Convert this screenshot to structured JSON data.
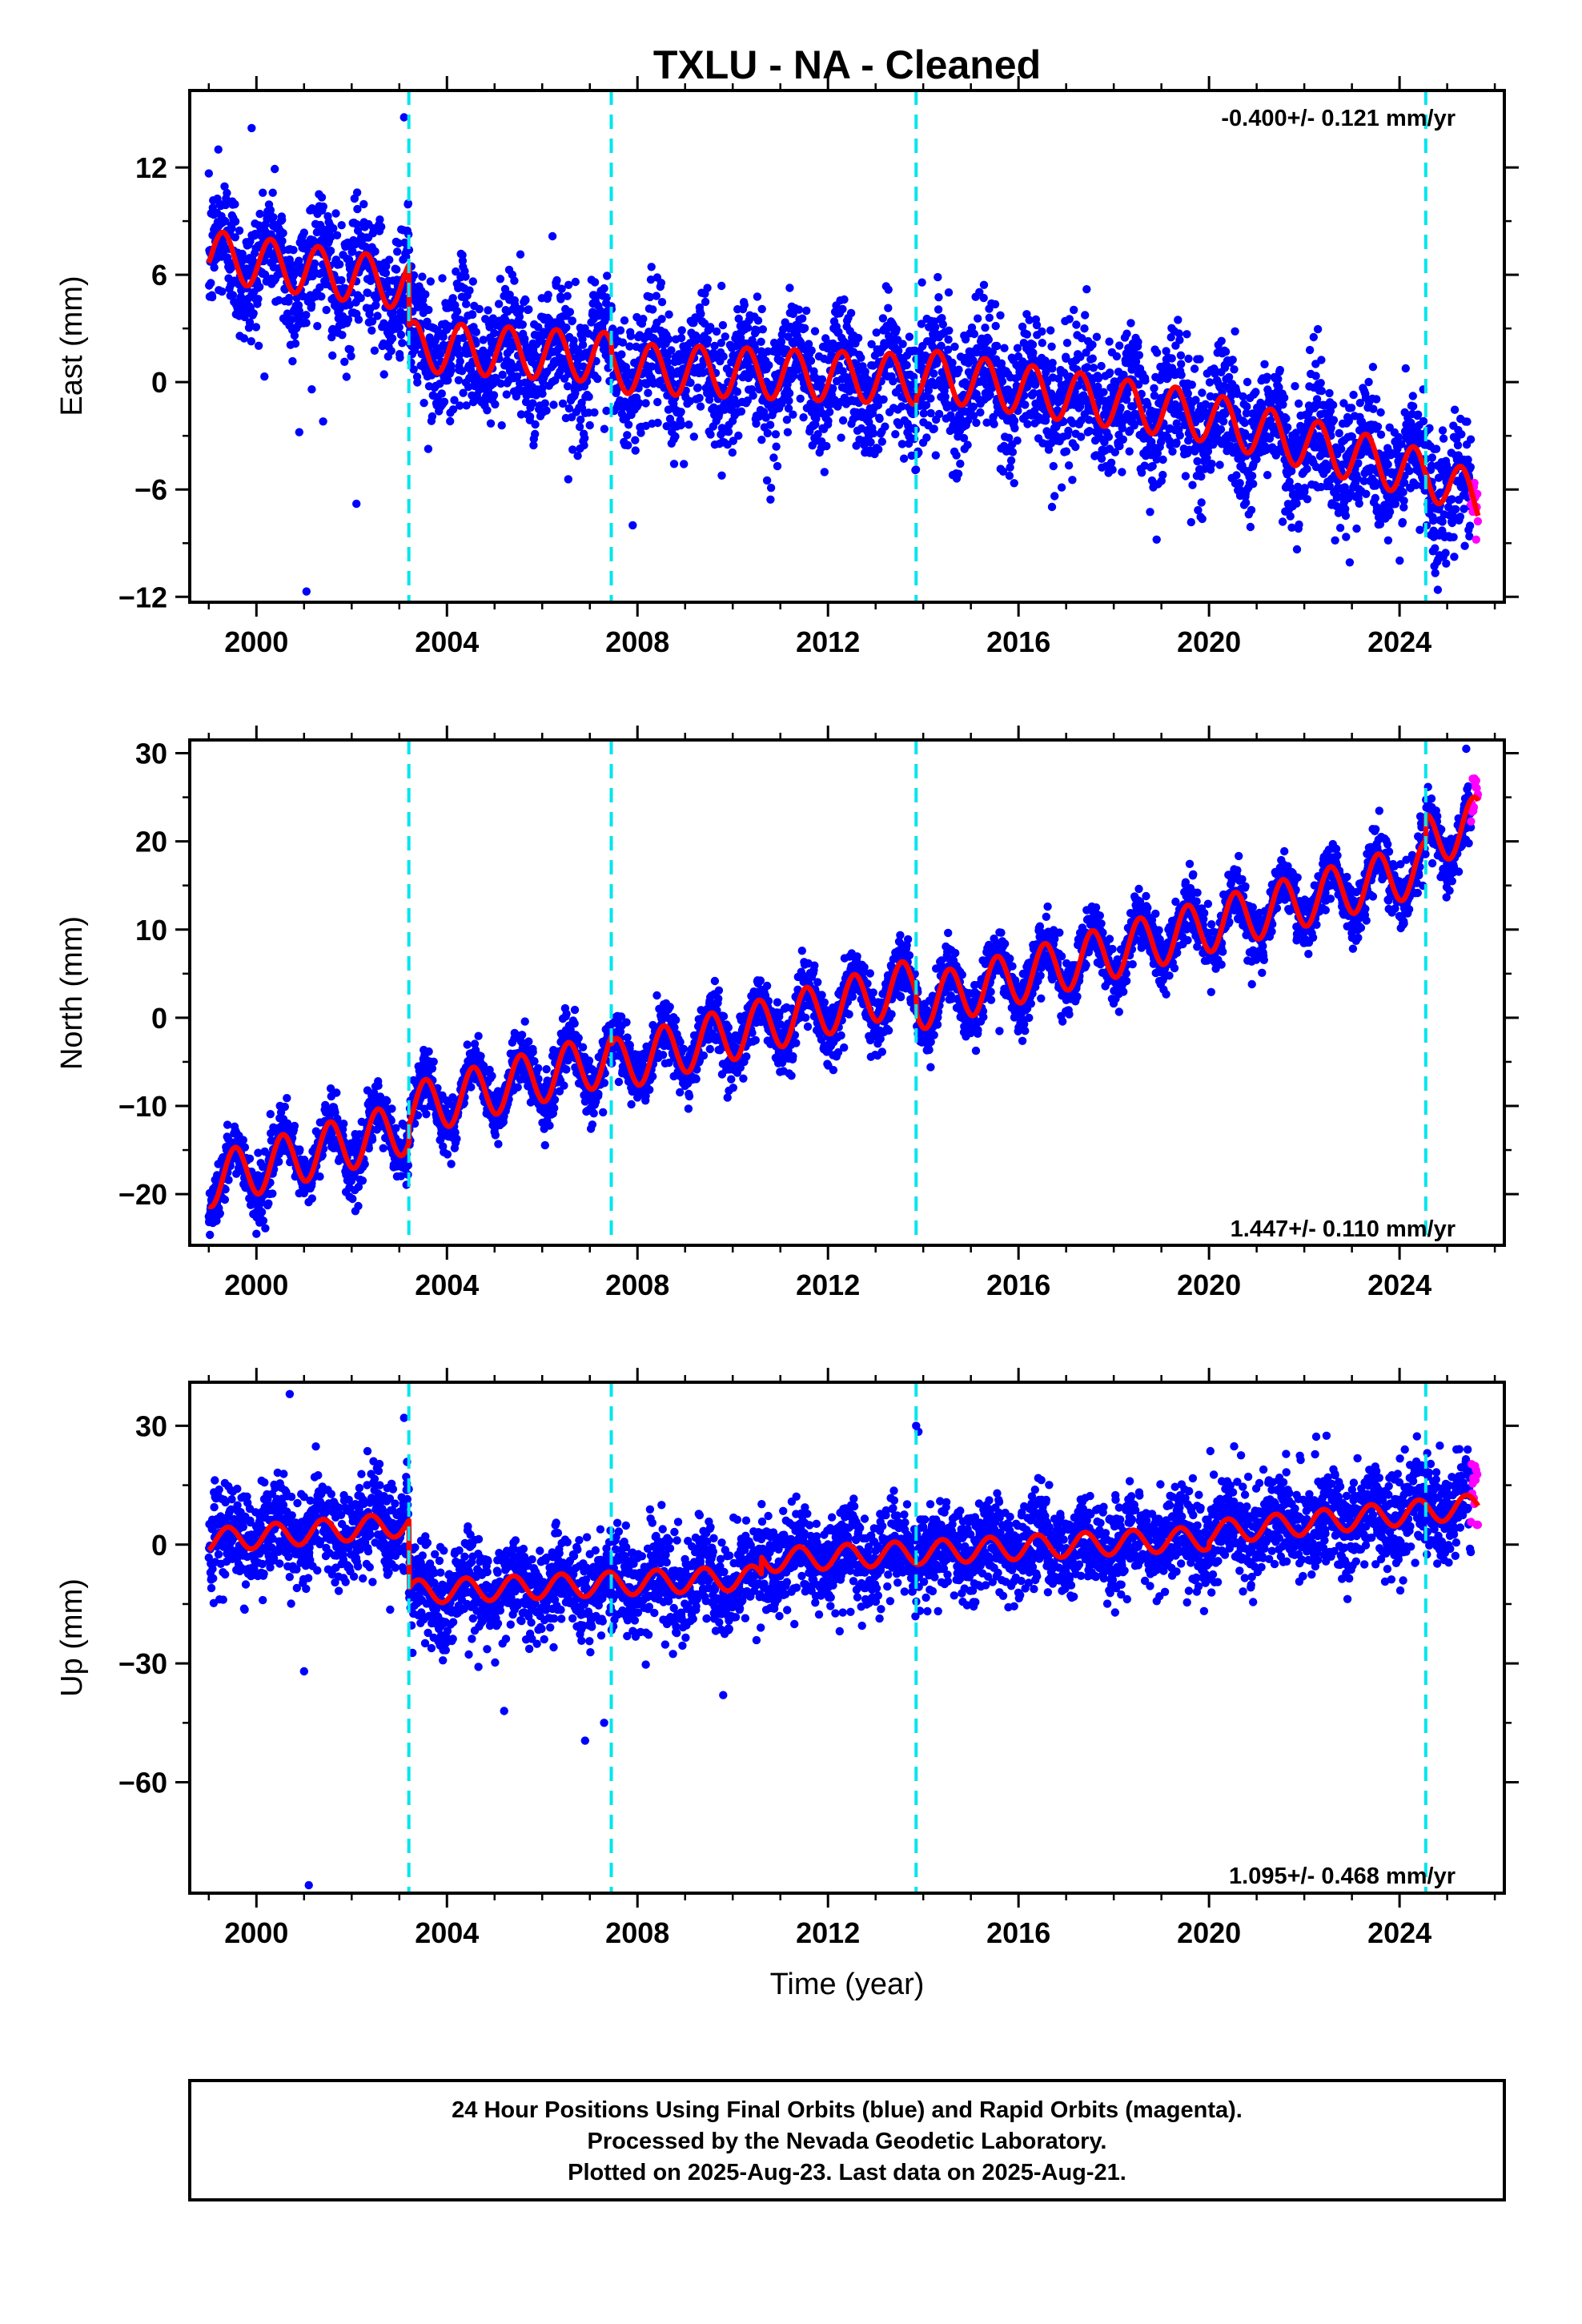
{
  "title": "TXLU  - NA - Cleaned",
  "chart_data": [
    {
      "type": "scatter",
      "ylabel": "East (mm)",
      "xlim": [
        1998.6,
        2026.2
      ],
      "ylim": [
        -12.3,
        16.3
      ],
      "x_ticks": [
        2000,
        2004,
        2008,
        2012,
        2016,
        2020,
        2024
      ],
      "x_tick_labels": [
        "2000",
        "2004",
        "2008",
        "2012",
        "2016",
        "2020",
        "2024"
      ],
      "y_ticks": [
        12,
        6,
        0,
        -6,
        -12
      ],
      "y_tick_labels": [
        "12",
        "6",
        "0",
        "−6",
        "−12"
      ],
      "rate_text": "-0.400+/- 0.121 mm/yr",
      "rate_position": "top-right",
      "equipment_changes": [
        2003.2,
        2007.45,
        2013.85,
        2024.55
      ],
      "model": {
        "segments": [
          {
            "t0": 1999.0,
            "t1": 2003.2,
            "y_start": 7.1,
            "rate": -0.4
          },
          {
            "t0": 2003.2,
            "t1": 2007.45,
            "y_start": 2.0,
            "rate": -0.15
          },
          {
            "t0": 2007.45,
            "t1": 2013.85,
            "y_start": 0.8,
            "rate": -0.1
          },
          {
            "t0": 2013.85,
            "t1": 2020.0,
            "y_start": 0.5,
            "rate": -0.4
          },
          {
            "t0": 2020.0,
            "t1": 2024.55,
            "y_start": -2.0,
            "rate": -0.7
          },
          {
            "t0": 2024.55,
            "t1": 2025.65,
            "y_start": -5.0,
            "rate": -1.5
          }
        ],
        "annual_amplitude": 1.4,
        "annual_phase_year": 0.3,
        "noise_sd": 1.8
      },
      "series": [
        {
          "name": "Final Orbits",
          "color": "#0000ff",
          "x_range": [
            1999.0,
            2025.5
          ]
        },
        {
          "name": "Rapid Orbits",
          "color": "#ff00ff",
          "x_range": [
            2025.5,
            2025.65
          ]
        },
        {
          "name": "",
          "color": "#ff0000",
          "type": "line"
        }
      ],
      "outliers": [
        [
          1999.85,
          16.8
        ],
        [
          2001.05,
          -11.7
        ],
        [
          2002.1,
          -6.8
        ],
        [
          2018.9,
          -8.8
        ],
        [
          2007.9,
          -8.0
        ],
        [
          1999.2,
          13.0
        ],
        [
          1999.9,
          14.2
        ],
        [
          2001.4,
          -2.2
        ],
        [
          2000.9,
          -2.8
        ],
        [
          2003.1,
          14.8
        ]
      ]
    },
    {
      "type": "scatter",
      "ylabel": "North (mm)",
      "xlim": [
        1998.6,
        2026.2
      ],
      "ylim": [
        -25.8,
        31.5
      ],
      "x_ticks": [
        2000,
        2004,
        2008,
        2012,
        2016,
        2020,
        2024
      ],
      "x_tick_labels": [
        "2000",
        "2004",
        "2008",
        "2012",
        "2016",
        "2020",
        "2024"
      ],
      "y_ticks": [
        30,
        20,
        10,
        0,
        -10,
        -20
      ],
      "y_tick_labels": [
        "30",
        "20",
        "10",
        "0",
        "−10",
        "−20"
      ],
      "rate_text": "1.447+/- 0.110 mm/yr",
      "rate_position": "bottom-right",
      "equipment_changes": [
        2003.2,
        2007.45,
        2013.85,
        2024.55
      ],
      "model": {
        "segments": [
          {
            "t0": 1999.0,
            "t1": 2003.2,
            "y_start": -18.5,
            "rate": 1.45
          },
          {
            "t0": 2003.2,
            "t1": 2007.45,
            "y_start": -10.5,
            "rate": 1.4
          },
          {
            "t0": 2007.45,
            "t1": 2013.85,
            "y_start": -5.5,
            "rate": 1.45
          },
          {
            "t0": 2013.85,
            "t1": 2024.55,
            "y_start": 1.5,
            "rate": 1.45
          },
          {
            "t0": 2024.55,
            "t1": 2025.65,
            "y_start": 20.0,
            "rate": 2.0
          }
        ],
        "annual_amplitude": 3.0,
        "annual_phase_year": 0.55,
        "noise_sd": 1.6
      },
      "series": [
        {
          "name": "Final Orbits",
          "color": "#0000ff",
          "x_range": [
            1999.0,
            2025.5
          ]
        },
        {
          "name": "Rapid Orbits",
          "color": "#ff00ff",
          "x_range": [
            2025.5,
            2025.65
          ]
        },
        {
          "name": "",
          "color": "#ff0000",
          "type": "line"
        }
      ],
      "outliers": [
        [
          2025.4,
          30.5
        ],
        [
          2000.0,
          -24.5
        ],
        [
          2020.9,
          3.8
        ],
        [
          2015.6,
          -1.5
        ]
      ]
    },
    {
      "type": "scatter",
      "ylabel": "Up (mm)",
      "xlim": [
        1998.6,
        2026.2
      ],
      "ylim": [
        -88.0,
        41.0
      ],
      "x_ticks": [
        2000,
        2004,
        2008,
        2012,
        2016,
        2020,
        2024
      ],
      "x_tick_labels": [
        "2000",
        "2004",
        "2008",
        "2012",
        "2016",
        "2020",
        "2024"
      ],
      "y_ticks": [
        30,
        0,
        -30,
        -60
      ],
      "y_tick_labels": [
        "30",
        "0",
        "−30",
        "−60"
      ],
      "xlabel": "Time (year)",
      "rate_text": "1.095+/- 0.468 mm/yr",
      "rate_position": "bottom-right",
      "equipment_changes": [
        2003.2,
        2007.45,
        2013.85,
        2024.55
      ],
      "model": {
        "segments": [
          {
            "t0": 1999.0,
            "t1": 2003.2,
            "y_start": 1.0,
            "rate": 1.0
          },
          {
            "t0": 2003.2,
            "t1": 2010.6,
            "y_start": -12.0,
            "rate": 0.5
          },
          {
            "t0": 2010.6,
            "t1": 2020.0,
            "y_start": -4.0,
            "rate": 0.6
          },
          {
            "t0": 2020.0,
            "t1": 2025.65,
            "y_start": 3.0,
            "rate": 1.2
          }
        ],
        "annual_amplitude": 3.0,
        "annual_phase_year": 0.4,
        "noise_sd": 6.0
      },
      "series": [
        {
          "name": "Final Orbits",
          "color": "#0000ff",
          "x_range": [
            1999.0,
            2025.5
          ]
        },
        {
          "name": "Rapid Orbits",
          "color": "#ff00ff",
          "x_range": [
            2025.5,
            2025.65
          ]
        },
        {
          "name": "",
          "color": "#ff0000",
          "type": "line"
        }
      ],
      "outliers": [
        [
          2000.7,
          38.0
        ],
        [
          2001.1,
          -86.0
        ],
        [
          2006.9,
          -49.5
        ],
        [
          2007.3,
          -45.0
        ],
        [
          2009.8,
          -38.0
        ],
        [
          2013.85,
          30.0
        ],
        [
          2013.9,
          28.5
        ],
        [
          2003.1,
          32.0
        ],
        [
          2005.2,
          -42.0
        ],
        [
          2001.0,
          -32.0
        ]
      ]
    }
  ],
  "colors": {
    "final_orbits": "#0000ff",
    "rapid_orbits": "#ff00ff",
    "model": "#ff0000",
    "equipment_change": "#00e5ee"
  },
  "footer": {
    "lines": [
      "24 Hour Positions Using Final Orbits (blue) and Rapid Orbits (magenta).",
      "Processed by the Nevada Geodetic Laboratory.",
      "Plotted on 2025-Aug-23. Last data on 2025-Aug-21."
    ]
  }
}
